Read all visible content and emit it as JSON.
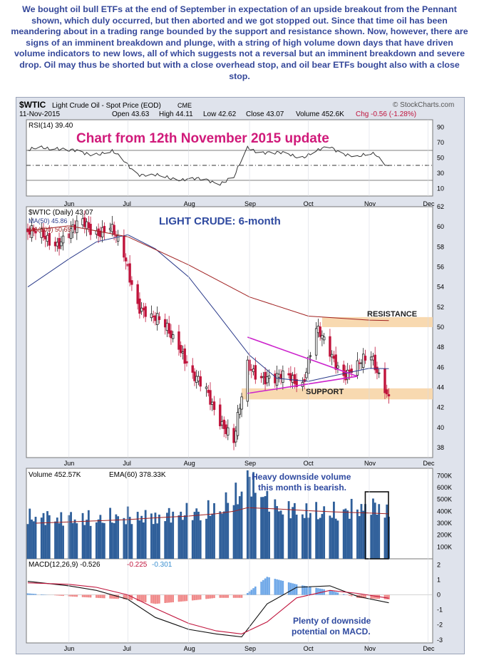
{
  "header_text": "We bought oil bull ETFs at the end of September in expectation of an upside breakout from the Pennant shown, which duly occurred, but then aborted and we got stopped out. Since that time oil has been meandering about in a trading range bounded by the support and resistance shown. Now, however, there are signs of an imminent breakdown and plunge, with a string of high volume down days that have driven volume indicators to new lows, all of which suggests not a reversal but an imminent breakdown and severe drop. Oil may thus be shorted but with a close overhead stop, and oil bear ETFs bought also with a close stop.",
  "chart_header": {
    "symbol": "$WTIC",
    "name": "Light Crude Oil - Spot Price (EOD)",
    "exchange": "CME",
    "date": "11-Nov-2015",
    "open": "Open 43.63",
    "high": "High 44.11",
    "low": "Low 42.62",
    "close": "Close 43.07",
    "volume": "Volume 452.6K",
    "chg": "Chg -0.56 (-1.28%)",
    "source": "© StockCharts.com"
  },
  "annotations": {
    "update_title": "Chart from 12th November 2015 update",
    "price_title": "LIGHT CRUDE: 6-month",
    "resistance": "RESISTANCE",
    "support": "SUPPORT",
    "volume_note_1": "Heavy downside volume",
    "volume_note_2": "this month is bearish.",
    "macd_note_1": "Plenty of downside",
    "macd_note_2": "potential on MACD."
  },
  "colors": {
    "up": "#202020",
    "down": "#c0143c",
    "ma50": "#2a3a8a",
    "ma200": "#a02020",
    "rsi": "#333333",
    "pennant": "#cc22cc",
    "band": "#f8d9b0",
    "volume_bar": "#2f5f9a",
    "annotation": "#d01a7a",
    "title_blue": "#2f4aa0"
  },
  "chart_data": [
    {
      "type": "line",
      "panel": "rsi",
      "legend": "RSI(14) 39.40",
      "ylim": [
        0,
        100
      ],
      "yticks": [
        10,
        30,
        50,
        70,
        90
      ],
      "x": [
        "2015-05-11",
        "2015-05-26",
        "2015-06-09",
        "2015-06-23",
        "2015-07-06",
        "2015-07-20",
        "2015-08-03",
        "2015-08-17",
        "2015-08-24",
        "2015-08-31",
        "2015-09-14",
        "2015-09-28",
        "2015-10-12",
        "2015-10-26",
        "2015-11-04",
        "2015-11-11"
      ],
      "values": [
        60,
        64,
        55,
        58,
        30,
        24,
        22,
        18,
        24,
        62,
        56,
        52,
        64,
        50,
        56,
        39.4
      ]
    },
    {
      "type": "candlestick",
      "panel": "price",
      "legend": [
        "$WTIC (Daily) 43.07",
        "MA(50) 45.86",
        "MA(200) 50.65"
      ],
      "ylim": [
        37,
        62
      ],
      "yticks": [
        38,
        40,
        42,
        44,
        46,
        48,
        50,
        52,
        54,
        56,
        58,
        60,
        62
      ],
      "xticks": [
        "Jun",
        "Jul",
        "Aug",
        "Sep",
        "Oct",
        "Nov",
        "Dec"
      ],
      "series": [
        {
          "name": "$WTIC",
          "x": [
            "2015-05-11",
            "2015-05-18",
            "2015-05-26",
            "2015-06-01",
            "2015-06-08",
            "2015-06-15",
            "2015-06-22",
            "2015-06-29",
            "2015-07-06",
            "2015-07-13",
            "2015-07-20",
            "2015-07-27",
            "2015-08-03",
            "2015-08-10",
            "2015-08-17",
            "2015-08-24",
            "2015-08-31",
            "2015-09-08",
            "2015-09-14",
            "2015-09-21",
            "2015-09-28",
            "2015-10-05",
            "2015-10-12",
            "2015-10-19",
            "2015-10-26",
            "2015-11-02",
            "2015-11-09",
            "2015-11-11"
          ],
          "values": [
            59.5,
            59.0,
            58.5,
            59.3,
            60.3,
            59.6,
            60.0,
            57.0,
            52.5,
            50.9,
            50.0,
            48.5,
            45.0,
            43.5,
            41.0,
            38.5,
            46.0,
            45.2,
            44.7,
            45.0,
            44.5,
            49.7,
            47.3,
            45.5,
            46.0,
            47.0,
            44.3,
            43.07
          ]
        },
        {
          "name": "MA(50)",
          "x": [
            "2015-05-11",
            "2015-06-01",
            "2015-06-15",
            "2015-07-01",
            "2015-07-15",
            "2015-08-01",
            "2015-08-15",
            "2015-09-01",
            "2015-09-15",
            "2015-10-01",
            "2015-10-15",
            "2015-11-01",
            "2015-11-11"
          ],
          "values": [
            54.0,
            56.8,
            58.5,
            59.2,
            57.8,
            55.0,
            51.5,
            47.2,
            44.9,
            44.6,
            45.2,
            45.9,
            45.86
          ]
        },
        {
          "name": "MA(200)",
          "x": [
            "2015-05-11",
            "2015-06-01",
            "2015-07-01",
            "2015-08-01",
            "2015-09-01",
            "2015-10-01",
            "2015-11-01",
            "2015-11-11"
          ],
          "values": [
            59.6,
            60.1,
            59.0,
            56.2,
            53.0,
            51.1,
            50.7,
            50.65
          ]
        }
      ],
      "pennant": {
        "upper_start": [
          "2015-08-31",
          49.0
        ],
        "lower_start": [
          "2015-08-31",
          43.4
        ],
        "apex": [
          "2015-10-26",
          45.1
        ]
      },
      "resistance": [
        50.0,
        51.0
      ],
      "support": [
        42.8,
        43.9
      ]
    },
    {
      "type": "bar",
      "panel": "volume",
      "legend": [
        "Volume 452.57K",
        "EMA(60) 378.33K"
      ],
      "ylim": [
        0,
        750
      ],
      "yticks": [
        "100K",
        "200K",
        "300K",
        "400K",
        "500K",
        "600K",
        "700K"
      ],
      "x": [
        "2015-05-15",
        "2015-06-01",
        "2015-06-15",
        "2015-07-01",
        "2015-07-15",
        "2015-08-01",
        "2015-08-15",
        "2015-08-24",
        "2015-08-31",
        "2015-09-15",
        "2015-10-01",
        "2015-10-15",
        "2015-11-01",
        "2015-11-11"
      ],
      "values": [
        380,
        370,
        360,
        390,
        380,
        420,
        440,
        560,
        720,
        460,
        430,
        420,
        480,
        452.57
      ],
      "ema_values": [
        300,
        310,
        320,
        330,
        345,
        360,
        380,
        400,
        430,
        420,
        405,
        395,
        385,
        378.33
      ]
    },
    {
      "type": "line",
      "panel": "macd",
      "legend": [
        "MACD(12,26,9) -0.526",
        "-0.225",
        "-0.301"
      ],
      "ylim": [
        -3.2,
        2.4
      ],
      "yticks": [
        -3,
        -2,
        -1,
        0,
        1,
        2
      ],
      "x": [
        "2015-05-11",
        "2015-06-01",
        "2015-06-15",
        "2015-07-01",
        "2015-07-15",
        "2015-08-01",
        "2015-08-15",
        "2015-08-28",
        "2015-09-10",
        "2015-09-25",
        "2015-10-12",
        "2015-10-26",
        "2015-11-11"
      ],
      "series": [
        {
          "name": "MACD",
          "values": [
            0.9,
            0.6,
            0.3,
            -0.3,
            -1.5,
            -2.3,
            -2.6,
            -2.8,
            -0.6,
            0.5,
            0.6,
            -0.1,
            -0.526
          ]
        },
        {
          "name": "Signal",
          "values": [
            0.8,
            0.7,
            0.5,
            0.0,
            -0.9,
            -1.9,
            -2.4,
            -2.6,
            -1.8,
            -0.2,
            0.3,
            0.1,
            -0.225
          ]
        },
        {
          "name": "Histogram",
          "values": [
            0.1,
            -0.1,
            -0.2,
            -0.3,
            -0.6,
            -0.4,
            -0.2,
            -0.2,
            1.2,
            0.7,
            0.3,
            -0.2,
            -0.301
          ]
        }
      ]
    }
  ]
}
